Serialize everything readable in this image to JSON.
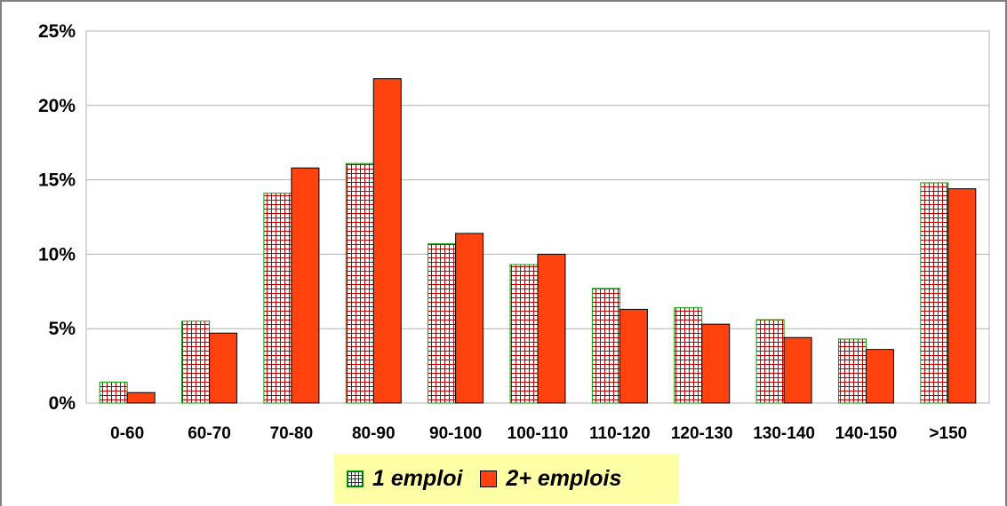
{
  "chart_data": {
    "type": "bar",
    "categories": [
      "0-60",
      "60-70",
      "70-80",
      "80-90",
      "90-100",
      "100-110",
      "110-120",
      "120-130",
      "130-140",
      "140-150",
      ">150"
    ],
    "series": [
      {
        "name": "1 emploi",
        "values": [
          1.4,
          5.5,
          14.1,
          16.1,
          10.7,
          9.3,
          7.7,
          6.4,
          5.6,
          4.3,
          14.8
        ],
        "pattern": "grid",
        "color": "#ffffff",
        "pattern_colors": [
          "#c00000",
          "#00a000"
        ]
      },
      {
        "name": "2+ emplois",
        "values": [
          0.7,
          4.7,
          15.8,
          21.8,
          11.4,
          10.0,
          6.3,
          5.3,
          4.4,
          3.6,
          14.4
        ],
        "color": "#ff420e"
      }
    ],
    "y_ticks": [
      "0%",
      "5%",
      "10%",
      "15%",
      "20%",
      "25%"
    ],
    "ylim": [
      0,
      25
    ],
    "y_unit": "%",
    "title": "",
    "xlabel": "",
    "ylabel": "",
    "grid": true,
    "legend_position": "bottom-center",
    "legend_background": "#ffffa6"
  }
}
